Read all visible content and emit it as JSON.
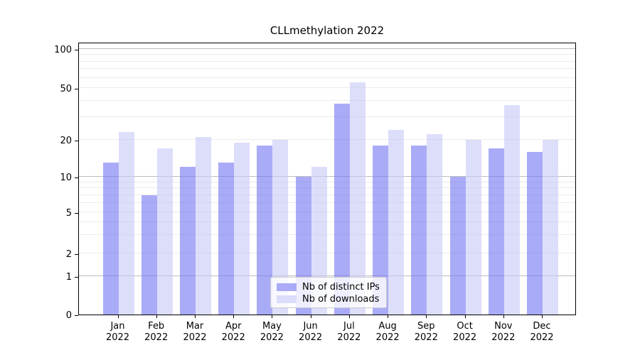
{
  "title": "CLLmethylation 2022",
  "chart_data": {
    "type": "bar",
    "title": "CLLmethylation 2022",
    "categories": [
      "Jan",
      "Feb",
      "Mar",
      "Apr",
      "May",
      "Jun",
      "Jul",
      "Aug",
      "Sep",
      "Oct",
      "Nov",
      "Dec"
    ],
    "category_year": "2022",
    "series": [
      {
        "name": "Nb of distinct IPs",
        "color": "#7173f2",
        "fill_alpha": 0.6,
        "flat_color": "#aaaaf8",
        "values": [
          13,
          7,
          12,
          13,
          18,
          10,
          38,
          18,
          18,
          10,
          17,
          16
        ]
      },
      {
        "name": "Nb of downloads",
        "color": "#c7c8f7",
        "fill_alpha": 0.6,
        "flat_color": "#dcddfa",
        "values": [
          23,
          17,
          21,
          19,
          20,
          12,
          55,
          24,
          22,
          20,
          37,
          20
        ]
      }
    ],
    "yticks": [
      0,
      1,
      2,
      5,
      10,
      20,
      50,
      100
    ],
    "ytick_labels": [
      "0",
      "1",
      "2",
      "5",
      "10",
      "20",
      "50",
      "100"
    ],
    "y_major_gridlines": [
      1,
      10,
      100
    ],
    "y_minor_gridlines": [
      2,
      3,
      4,
      5,
      6,
      7,
      8,
      9,
      20,
      30,
      40,
      50,
      60,
      70,
      80,
      90
    ],
    "yscale": "log-like with zero baseline",
    "ylim": [
      0,
      116
    ],
    "grid": "horizontal",
    "legend": {
      "position": "inside-bottom-center",
      "entries": [
        "Nb of distinct IPs",
        "Nb of downloads"
      ]
    }
  }
}
